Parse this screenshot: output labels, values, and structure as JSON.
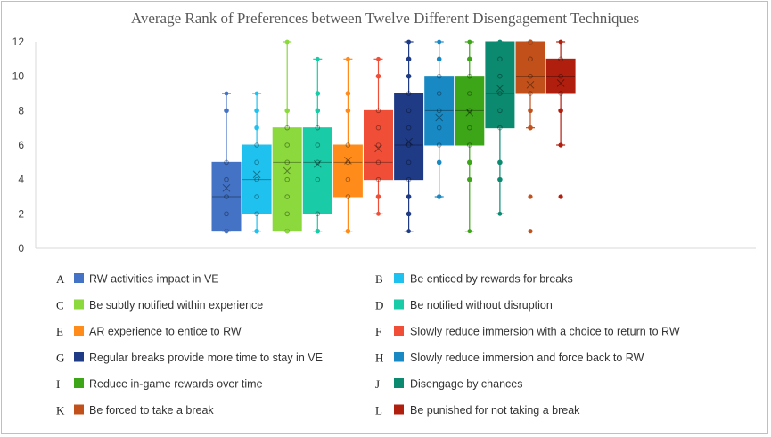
{
  "chart_data": {
    "type": "boxplot",
    "title": "Average Rank of Preferences between Twelve Different Disengagement Techniques",
    "ylim": [
      0,
      12
    ],
    "yticks": [
      0,
      2,
      4,
      6,
      8,
      10,
      12
    ],
    "grid": false,
    "legend_position": "bottom",
    "series": [
      {
        "letter": "A",
        "name": "RW activities impact in VE",
        "color": "#4472C4",
        "min": 1,
        "q1": 1,
        "median": 3,
        "q3": 5,
        "max": 9,
        "mean": 3.5,
        "points": [
          1,
          2,
          3,
          4,
          5,
          8
        ],
        "outliers": []
      },
      {
        "letter": "B",
        "name": "Be enticed by rewards for breaks",
        "color": "#1FC1EE",
        "min": 1,
        "q1": 2,
        "median": 4,
        "q3": 6,
        "max": 9,
        "mean": 4.3,
        "points": [
          1,
          2,
          3,
          4,
          5,
          6,
          7,
          8
        ],
        "outliers": []
      },
      {
        "letter": "C",
        "name": "Be subtly notified within experience",
        "color": "#8BD93D",
        "min": 1,
        "q1": 1,
        "median": 5,
        "q3": 7,
        "max": 12,
        "mean": 4.5,
        "points": [
          1,
          2,
          3,
          4,
          5,
          6,
          7,
          8
        ],
        "outliers": []
      },
      {
        "letter": "D",
        "name": "Be notified without disruption",
        "color": "#19CBA6",
        "min": 1,
        "q1": 2,
        "median": 5,
        "q3": 7,
        "max": 11,
        "mean": 4.9,
        "points": [
          1,
          2,
          4,
          5,
          6,
          7,
          8,
          9
        ],
        "outliers": []
      },
      {
        "letter": "E",
        "name": "AR experience to entice to RW",
        "color": "#FF8C1A",
        "min": 1,
        "q1": 3,
        "median": 5,
        "q3": 6,
        "max": 11,
        "mean": 5.1,
        "points": [
          1,
          3,
          4,
          5,
          6,
          8,
          9
        ],
        "outliers": []
      },
      {
        "letter": "F",
        "name": "Slowly reduce immersion with a choice to return to RW",
        "color": "#F04E37",
        "min": 2,
        "q1": 4,
        "median": 5,
        "q3": 8,
        "max": 11,
        "mean": 5.8,
        "points": [
          3,
          4,
          5,
          6,
          7,
          8,
          10
        ],
        "outliers": []
      },
      {
        "letter": "G",
        "name": "Regular breaks provide more time to stay in VE",
        "color": "#1F3B86",
        "min": 1,
        "q1": 4,
        "median": 6,
        "q3": 9,
        "max": 12,
        "mean": 6.2,
        "points": [
          2,
          3,
          4,
          5,
          6,
          7,
          8,
          9,
          10,
          11
        ],
        "outliers": []
      },
      {
        "letter": "H",
        "name": "Slowly reduce immersion and force back to RW",
        "color": "#1989C3",
        "min": 3,
        "q1": 6,
        "median": 8,
        "q3": 10,
        "max": 12,
        "mean": 7.6,
        "points": [
          3,
          5,
          6,
          7,
          8,
          9,
          10,
          11
        ],
        "outliers": []
      },
      {
        "letter": "I",
        "name": "Reduce in-game rewards over time",
        "color": "#3DA518",
        "min": 1,
        "q1": 6,
        "median": 8,
        "q3": 10,
        "max": 12,
        "mean": 7.9,
        "points": [
          4,
          5,
          6,
          7,
          8,
          9,
          10,
          11
        ],
        "outliers": []
      },
      {
        "letter": "J",
        "name": "Disengage by chances",
        "color": "#0B8A70",
        "min": 2,
        "q1": 7,
        "median": 9,
        "q3": 12,
        "max": 12,
        "mean": 9.3,
        "points": [
          4,
          5,
          7,
          8,
          9,
          10,
          11
        ],
        "outliers": []
      },
      {
        "letter": "K",
        "name": "Be forced to take a break",
        "color": "#C2501A",
        "min": 7,
        "q1": 9,
        "median": 10,
        "q3": 12,
        "max": 12,
        "mean": 9.5,
        "points": [
          7,
          8,
          9,
          10,
          11,
          12
        ],
        "outliers": [
          1,
          3
        ]
      },
      {
        "letter": "L",
        "name": "Be punished for not taking a break",
        "color": "#B01E0E",
        "min": 6,
        "q1": 9,
        "median": 10,
        "q3": 11,
        "max": 12,
        "mean": 9.6,
        "points": [
          8,
          9,
          10,
          11
        ],
        "outliers": [
          3,
          6
        ]
      }
    ]
  }
}
